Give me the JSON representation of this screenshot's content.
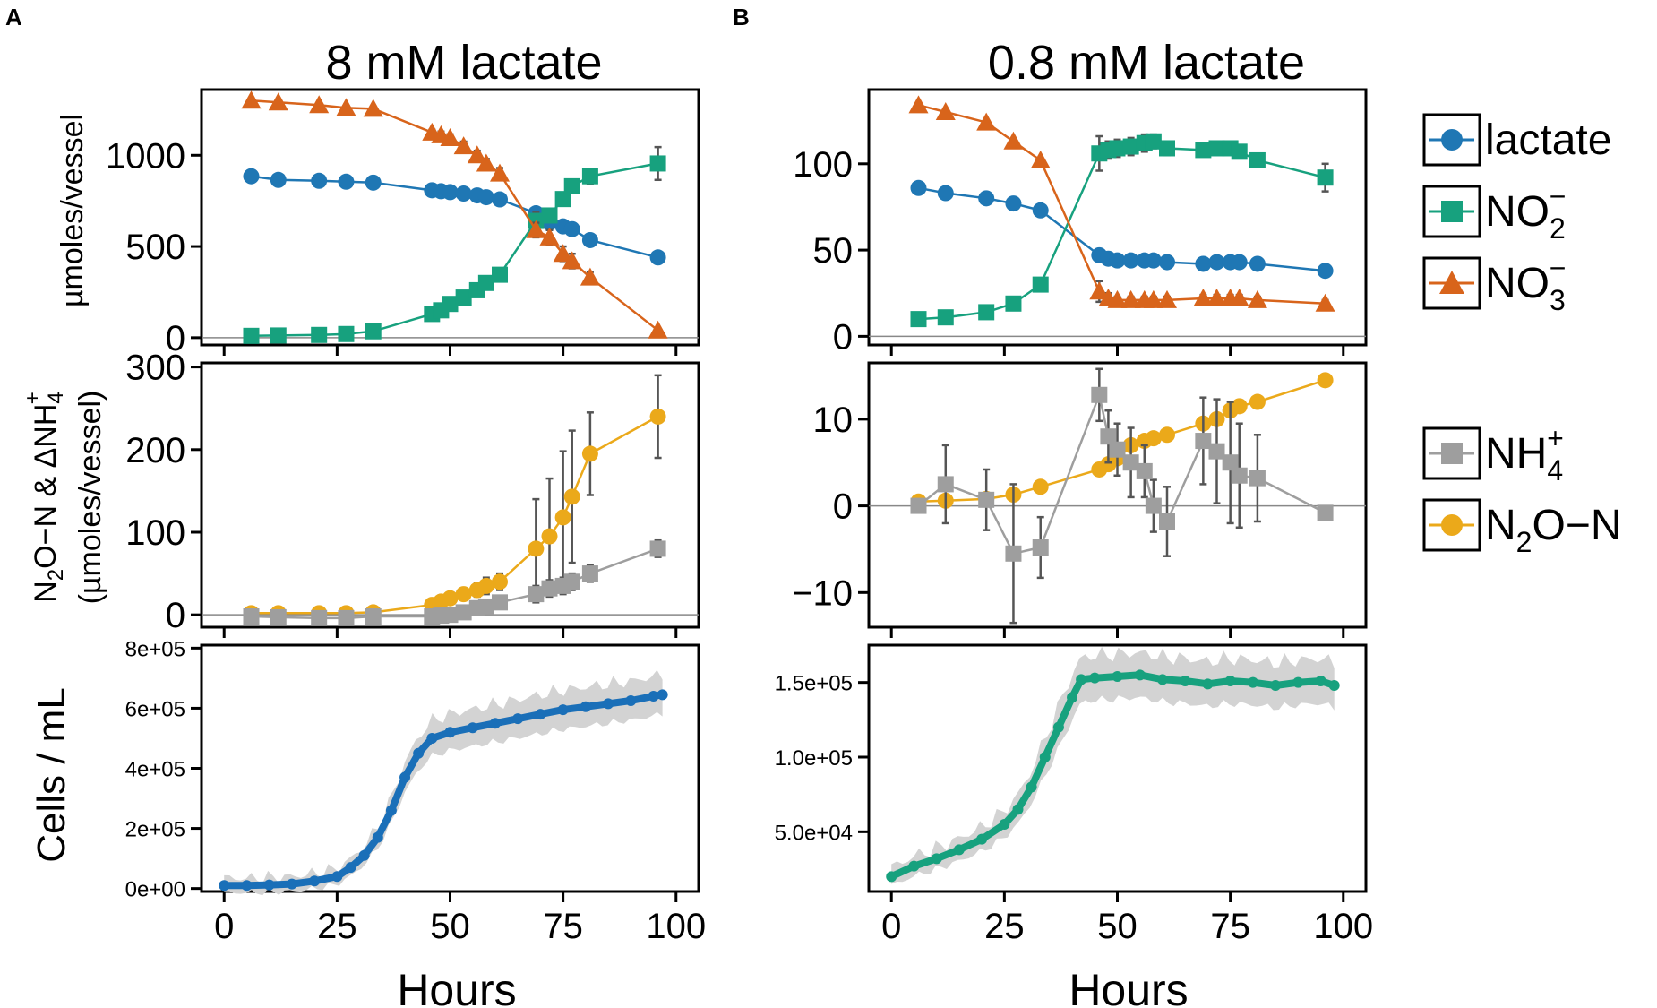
{
  "panels": {
    "A": {
      "label": "A",
      "title": "8 mM lactate"
    },
    "B": {
      "label": "B",
      "title": "0.8 mM lactate"
    }
  },
  "axes": {
    "xlabel": "Hours",
    "x_ticks": [
      "0",
      "25",
      "50",
      "75",
      "100"
    ],
    "xlim": [
      -5,
      105
    ],
    "ylabel_top": "µmoles/vessel",
    "ylabel_mid_line1_parts": [
      "N",
      "2",
      "O−N & ΔNH",
      "4",
      "+"
    ],
    "ylabel_mid_line2": "(µmoles/vessel)",
    "ylabel_bottom": "Cells / mL"
  },
  "legend": {
    "top": [
      {
        "name": "lactate",
        "marker": "circle",
        "color": "#1f77b4",
        "label_parts": [
          "lactate"
        ]
      },
      {
        "name": "NO2-",
        "marker": "square",
        "color": "#17a17e",
        "label_parts": [
          "NO",
          "2",
          "−"
        ]
      },
      {
        "name": "NO3-",
        "marker": "triangle",
        "color": "#d8641b",
        "label_parts": [
          "NO",
          "3",
          "−"
        ]
      }
    ],
    "mid": [
      {
        "name": "NH4+",
        "marker": "square",
        "color": "#9e9e9e",
        "label_parts": [
          "NH",
          "4",
          "+"
        ]
      },
      {
        "name": "N2O-N",
        "marker": "circle",
        "color": "#eba91a",
        "label_parts": [
          "N",
          "2",
          "O−N"
        ]
      }
    ]
  },
  "chart_data": [
    {
      "type": "line",
      "panel": "A-top",
      "title": "8 mM lactate",
      "ylabel": "µmoles/vessel",
      "ylim": [
        -40,
        1360
      ],
      "y_ticks": [
        "0",
        "500",
        "1000"
      ],
      "series": [
        {
          "name": "lactate",
          "color": "#1f77b4",
          "marker": "circle",
          "x": [
            6,
            12,
            21,
            27,
            33,
            46,
            48,
            50,
            53,
            56,
            58,
            61,
            69,
            72,
            75,
            77,
            81,
            96
          ],
          "y": [
            885,
            865,
            860,
            855,
            850,
            808,
            803,
            798,
            790,
            780,
            770,
            758,
            682,
            630,
            610,
            595,
            535,
            440
          ],
          "err": []
        },
        {
          "name": "NO2-",
          "color": "#17a17e",
          "marker": "square",
          "x": [
            6,
            12,
            21,
            27,
            33,
            46,
            48,
            50,
            53,
            56,
            58,
            61,
            69,
            72,
            75,
            77,
            81,
            96
          ],
          "y": [
            10,
            12,
            15,
            20,
            35,
            130,
            150,
            185,
            220,
            260,
            300,
            345,
            640,
            670,
            760,
            830,
            885,
            955
          ],
          "err": [
            0,
            0,
            0,
            0,
            0,
            10,
            10,
            10,
            10,
            12,
            12,
            15,
            50,
            30,
            30,
            30,
            40,
            90
          ]
        },
        {
          "name": "NO3-",
          "color": "#d8641b",
          "marker": "triangle",
          "x": [
            6,
            12,
            21,
            27,
            33,
            46,
            48,
            50,
            53,
            56,
            58,
            61,
            69,
            72,
            75,
            77,
            81,
            96
          ],
          "y": [
            1300,
            1290,
            1275,
            1260,
            1255,
            1125,
            1110,
            1095,
            1050,
            1000,
            955,
            900,
            590,
            550,
            460,
            420,
            330,
            40
          ],
          "err": [
            0,
            0,
            0,
            0,
            0,
            15,
            20,
            20,
            25,
            25,
            25,
            30,
            40,
            40,
            40,
            40,
            30,
            10
          ]
        }
      ]
    },
    {
      "type": "line",
      "panel": "A-mid",
      "ylabel": "N2O−N & ΔNH4+ (µmoles/vessel)",
      "ylim": [
        -15,
        305
      ],
      "y_ticks": [
        "0",
        "100",
        "200",
        "300"
      ],
      "series": [
        {
          "name": "N2O-N",
          "color": "#eba91a",
          "marker": "circle",
          "x": [
            6,
            12,
            21,
            27,
            33,
            46,
            48,
            50,
            53,
            56,
            58,
            61,
            69,
            72,
            75,
            77,
            81,
            96
          ],
          "y": [
            2,
            2,
            2,
            2,
            3,
            12,
            16,
            20,
            25,
            30,
            35,
            40,
            80,
            95,
            118,
            143,
            195,
            240
          ],
          "err": [
            0,
            0,
            0,
            0,
            0,
            3,
            3,
            4,
            6,
            8,
            10,
            10,
            60,
            70,
            80,
            80,
            50,
            50
          ]
        },
        {
          "name": "NH4+",
          "color": "#9e9e9e",
          "marker": "square",
          "x": [
            6,
            12,
            21,
            27,
            33,
            46,
            48,
            50,
            53,
            56,
            58,
            61,
            69,
            72,
            75,
            77,
            81,
            96
          ],
          "y": [
            -2,
            -3,
            -4,
            -4,
            -2,
            -2,
            -1,
            0,
            3,
            8,
            10,
            15,
            25,
            32,
            35,
            40,
            50,
            80
          ],
          "err": [
            0,
            0,
            0,
            0,
            0,
            2,
            2,
            2,
            3,
            4,
            4,
            5,
            10,
            10,
            10,
            10,
            10,
            10
          ]
        }
      ]
    },
    {
      "type": "line",
      "panel": "A-bottom",
      "ylabel": "Cells / mL",
      "ylim": [
        -10000,
        810000
      ],
      "y_ticks": [
        "0e+00",
        "2e+05",
        "4e+05",
        "6e+05",
        "8e+05"
      ],
      "series": [
        {
          "name": "cells",
          "color": "#1a6fb8",
          "x": [
            0,
            5,
            10,
            15,
            20,
            25,
            28,
            31,
            34,
            37,
            40,
            43,
            46,
            50,
            55,
            60,
            65,
            70,
            75,
            80,
            85,
            90,
            95,
            97
          ],
          "y": [
            10000,
            10000,
            12000,
            15000,
            25000,
            40000,
            70000,
            110000,
            170000,
            260000,
            370000,
            450000,
            500000,
            520000,
            535000,
            550000,
            565000,
            580000,
            595000,
            605000,
            615000,
            625000,
            640000,
            645000
          ],
          "band": 65000
        }
      ]
    },
    {
      "type": "line",
      "panel": "B-top",
      "title": "0.8 mM lactate",
      "ylim": [
        -5,
        143
      ],
      "y_ticks": [
        "0",
        "50",
        "100"
      ],
      "series": [
        {
          "name": "lactate",
          "color": "#1f77b4",
          "marker": "circle",
          "x": [
            6,
            12,
            21,
            27,
            33,
            46,
            48,
            50,
            53,
            56,
            58,
            61,
            69,
            72,
            75,
            77,
            81,
            96
          ],
          "y": [
            86,
            83,
            80,
            77,
            73,
            47,
            45,
            44,
            44,
            44,
            44,
            43,
            42,
            43,
            43,
            43,
            42,
            38
          ],
          "err": []
        },
        {
          "name": "NO2-",
          "color": "#17a17e",
          "marker": "square",
          "x": [
            6,
            12,
            21,
            27,
            33,
            46,
            48,
            50,
            53,
            56,
            58,
            61,
            69,
            72,
            75,
            77,
            81,
            96
          ],
          "y": [
            10,
            11,
            14,
            19,
            30,
            106,
            108,
            109,
            110,
            112,
            113,
            109,
            108,
            109,
            109,
            107,
            102,
            92
          ],
          "err": [
            0,
            0,
            0,
            0,
            0,
            10,
            5,
            5,
            5,
            5,
            4,
            4,
            3,
            3,
            3,
            3,
            3,
            8
          ]
        },
        {
          "name": "NO3-",
          "color": "#d8641b",
          "marker": "triangle",
          "x": [
            6,
            12,
            21,
            27,
            33,
            46,
            48,
            50,
            53,
            56,
            58,
            61,
            69,
            72,
            75,
            77,
            81,
            96
          ],
          "y": [
            134,
            130,
            124,
            113,
            102,
            26,
            22,
            21,
            21,
            21,
            21,
            21,
            22,
            22,
            22,
            22,
            21,
            19
          ],
          "err": [
            0,
            0,
            0,
            0,
            0,
            6,
            3,
            2,
            2,
            2,
            2,
            2,
            2,
            2,
            2,
            2,
            2,
            2
          ]
        }
      ]
    },
    {
      "type": "line",
      "panel": "B-mid",
      "ylim": [
        -14,
        16.5
      ],
      "y_ticks": [
        "−10",
        "0",
        "10"
      ],
      "series": [
        {
          "name": "N2O-N",
          "color": "#eba91a",
          "marker": "circle",
          "x": [
            6,
            12,
            21,
            27,
            33,
            46,
            48,
            50,
            53,
            56,
            58,
            61,
            69,
            72,
            75,
            77,
            81,
            96
          ],
          "y": [
            0.5,
            0.6,
            0.8,
            1.3,
            2.2,
            4.2,
            4.8,
            5.5,
            7,
            7.5,
            7.8,
            8.2,
            9.5,
            10,
            11,
            11.5,
            12,
            14.5
          ],
          "err": []
        },
        {
          "name": "NH4+",
          "color": "#9e9e9e",
          "marker": "square",
          "x": [
            6,
            12,
            21,
            27,
            33,
            46,
            48,
            50,
            53,
            56,
            58,
            61,
            69,
            72,
            75,
            77,
            81,
            96
          ],
          "y": [
            0,
            2.5,
            0.7,
            -5.5,
            -4.8,
            12.8,
            8,
            6.5,
            5,
            4,
            0,
            -1.8,
            7.5,
            6.3,
            5,
            3.5,
            3.2,
            -0.8
          ],
          "err": [
            0,
            4.5,
            3.5,
            8,
            3.5,
            3,
            3,
            3,
            4,
            3,
            3,
            4,
            5,
            6,
            7,
            6,
            5,
            0
          ]
        }
      ]
    },
    {
      "type": "line",
      "panel": "B-bottom",
      "ylim": [
        10000,
        175000
      ],
      "y_ticks": [
        "5.0e+04",
        "1.0e+05",
        "1.5e+05"
      ],
      "series": [
        {
          "name": "cells",
          "color": "#17a17e",
          "x": [
            0,
            5,
            10,
            15,
            20,
            25,
            28,
            31,
            34,
            37,
            40,
            42,
            45,
            50,
            55,
            60,
            65,
            70,
            75,
            80,
            85,
            90,
            95,
            98
          ],
          "y": [
            20000,
            27000,
            32000,
            38000,
            45000,
            55000,
            65000,
            80000,
            100000,
            120000,
            140000,
            152000,
            153000,
            154000,
            155000,
            152000,
            151000,
            149000,
            151000,
            150000,
            148000,
            150000,
            151000,
            148000
          ],
          "band": 15000
        }
      ]
    }
  ]
}
